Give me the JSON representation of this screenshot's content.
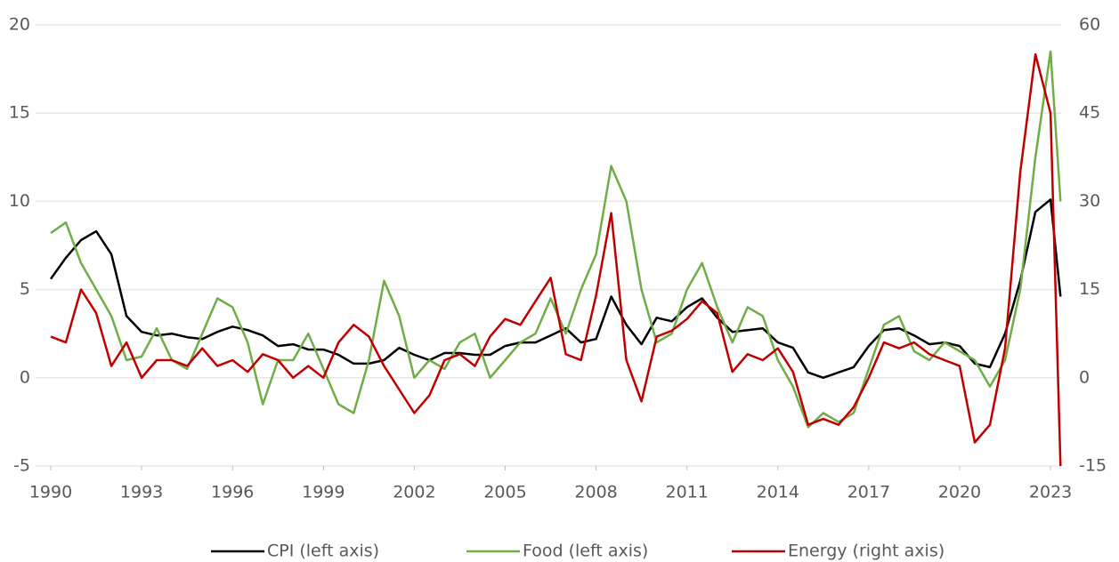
{
  "chart_data": {
    "type": "line",
    "x": [
      1990,
      1990.5,
      1991,
      1991.5,
      1992,
      1992.5,
      1993,
      1993.5,
      1994,
      1994.5,
      1995,
      1995.5,
      1996,
      1996.5,
      1997,
      1997.5,
      1998,
      1998.5,
      1999,
      1999.5,
      2000,
      2000.5,
      2001,
      2001.5,
      2002,
      2002.5,
      2003,
      2003.5,
      2004,
      2004.5,
      2005,
      2005.5,
      2006,
      2006.5,
      2007,
      2007.5,
      2008,
      2008.5,
      2009,
      2009.5,
      2010,
      2010.5,
      2011,
      2011.5,
      2012,
      2012.5,
      2013,
      2013.5,
      2014,
      2014.5,
      2015,
      2015.5,
      2016,
      2016.5,
      2017,
      2017.5,
      2018,
      2018.5,
      2019,
      2019.5,
      2020,
      2020.5,
      2021,
      2021.5,
      2022,
      2022.5,
      2023,
      2023.33
    ],
    "xlim": [
      1989.5,
      2023.35
    ],
    "xticks": [
      1990,
      1993,
      1996,
      1999,
      2002,
      2005,
      2008,
      2011,
      2014,
      2017,
      2020,
      2023
    ],
    "ylim": [
      -5,
      20
    ],
    "yticks": [
      -5,
      0,
      5,
      10,
      15,
      20
    ],
    "y2lim": [
      -15,
      60
    ],
    "y2ticks": [
      -15,
      0,
      15,
      30,
      45,
      60
    ],
    "grid": true,
    "series": [
      {
        "name": "CPI (left axis)",
        "color": "#000000",
        "values": [
          5.6,
          6.8,
          7.8,
          8.3,
          7.0,
          3.5,
          2.6,
          2.4,
          2.5,
          2.3,
          2.2,
          2.6,
          2.9,
          2.7,
          2.4,
          1.8,
          1.9,
          1.6,
          1.6,
          1.3,
          0.8,
          0.8,
          1.0,
          1.7,
          1.3,
          1.0,
          1.4,
          1.4,
          1.3,
          1.3,
          1.8,
          2.0,
          2.0,
          2.4,
          2.8,
          2.0,
          2.2,
          4.6,
          3.0,
          1.9,
          3.4,
          3.2,
          4.0,
          4.5,
          3.4,
          2.6,
          2.7,
          2.8,
          2.0,
          1.7,
          0.3,
          0.0,
          0.3,
          0.6,
          1.8,
          2.7,
          2.8,
          2.4,
          1.9,
          2.0,
          1.8,
          0.8,
          0.6,
          2.5,
          5.5,
          9.4,
          10.1,
          4.6
        ]
      },
      {
        "name": "Food (left axis)",
        "color": "#70ad47",
        "values": [
          8.2,
          8.8,
          6.5,
          5.0,
          3.5,
          1.0,
          1.2,
          2.8,
          1.0,
          0.5,
          2.5,
          4.5,
          4.0,
          2.0,
          -1.5,
          1.0,
          1.0,
          2.5,
          0.5,
          -1.5,
          -2.0,
          1.0,
          5.5,
          3.5,
          0.0,
          1.0,
          0.5,
          2.0,
          2.5,
          0.0,
          1.0,
          2.0,
          2.5,
          4.5,
          2.5,
          5.0,
          7.0,
          12.0,
          10.0,
          5.0,
          2.0,
          2.5,
          5.0,
          6.5,
          4.0,
          2.0,
          4.0,
          3.5,
          1.0,
          -0.5,
          -2.8,
          -2.0,
          -2.5,
          -2.0,
          0.5,
          3.0,
          3.5,
          1.5,
          1.0,
          2.0,
          1.5,
          1.0,
          -0.5,
          1.0,
          5.0,
          12.5,
          18.5,
          10.0
        ]
      },
      {
        "name": "Energy (right axis)",
        "color": "#c00000",
        "axis": "y2",
        "values": [
          7,
          6,
          15,
          11,
          2,
          6,
          0,
          3,
          3,
          2,
          5,
          2,
          3,
          1,
          4,
          3,
          0,
          2,
          0,
          6,
          9,
          7,
          2,
          -2,
          -6,
          -3,
          3,
          4,
          2,
          7,
          10,
          9,
          13,
          17,
          4,
          3,
          14,
          28,
          3,
          -4,
          7,
          8,
          10,
          13,
          11,
          1,
          4,
          3,
          5,
          1,
          -8,
          -7,
          -8,
          -5,
          0,
          6,
          5,
          6,
          4,
          3,
          2,
          -11,
          -8,
          5,
          35,
          55,
          45,
          -15
        ]
      }
    ]
  }
}
